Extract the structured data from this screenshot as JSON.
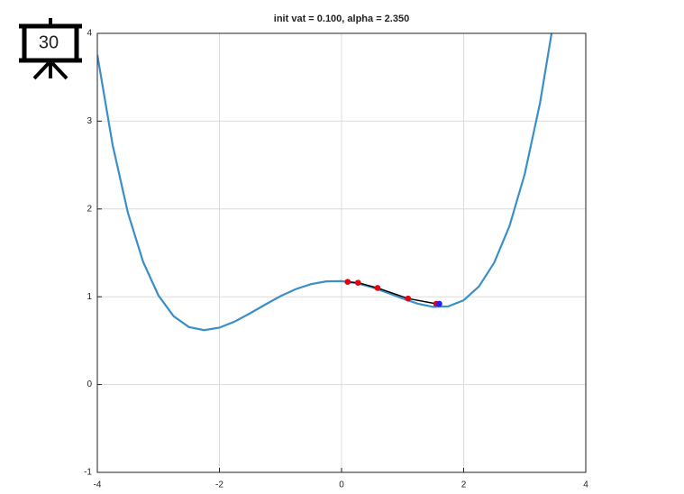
{
  "badge": "30",
  "chart_data": {
    "type": "line",
    "title": "init vat = 0.100, alpha = 2.350",
    "xlim": [
      -4,
      4
    ],
    "ylim": [
      -1,
      4
    ],
    "xticks": [
      -4,
      -2,
      0,
      2,
      4
    ],
    "yticks": [
      -1,
      0,
      1,
      2,
      3,
      4
    ],
    "grid": true,
    "series": [
      {
        "color": "#3a8fc9",
        "line": true,
        "x": [
          -4,
          -3.75,
          -3.5,
          -3.25,
          -3,
          -2.75,
          -2.5,
          -2.25,
          -2,
          -1.75,
          -1.5,
          -1.25,
          -1,
          -0.75,
          -0.5,
          -0.25,
          0,
          0.25,
          0.5,
          0.75,
          1,
          1.25,
          1.5,
          1.75,
          2,
          2.25,
          2.5,
          2.75,
          3,
          3.25,
          3.44
        ],
        "values": [
          3.755,
          2.731,
          1.959,
          1.398,
          1.016,
          0.778,
          0.655,
          0.62,
          0.648,
          0.718,
          0.811,
          0.911,
          1.007,
          1.087,
          1.144,
          1.175,
          1.178,
          1.154,
          1.108,
          1.046,
          0.98,
          0.921,
          0.885,
          0.891,
          0.96,
          1.117,
          1.388,
          1.804,
          2.397,
          3.204,
          4
        ]
      },
      {
        "color": "#000000",
        "line": true,
        "marker": "#e8000b",
        "x": [
          0.1,
          0.27,
          0.59,
          1.09,
          1.55,
          1.6
        ],
        "values": [
          1.17,
          1.16,
          1.1,
          0.98,
          0.92,
          0.92
        ]
      },
      {
        "color": "#1f1fff",
        "line": false,
        "marker": "#1f1fff",
        "x": [
          1.6
        ],
        "values": [
          0.92
        ]
      }
    ]
  }
}
